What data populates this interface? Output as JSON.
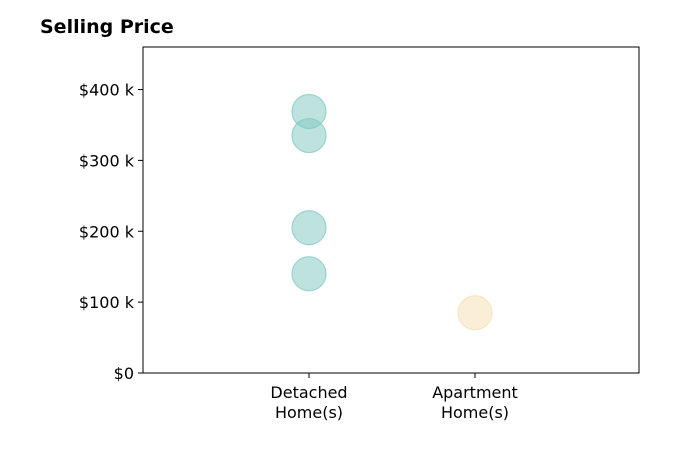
{
  "chart_data": {
    "type": "scatter",
    "title": "Selling Price",
    "xlabel": "",
    "ylabel": "",
    "categories": [
      [
        "Detached",
        "Home(s)"
      ],
      [
        "Apartment",
        "Home(s)"
      ]
    ],
    "ylim": [
      0,
      460000
    ],
    "yticks": [
      {
        "value": 0,
        "label": "$0"
      },
      {
        "value": 100000,
        "label": "$100 k"
      },
      {
        "value": 200000,
        "label": "$200 k"
      },
      {
        "value": 300000,
        "label": "$300 k"
      },
      {
        "value": 400000,
        "label": "$400 k"
      }
    ],
    "grid": false,
    "series": [
      {
        "category_index": 0,
        "color": "#7ec8c0",
        "values": [
          369000,
          335000,
          205000,
          140000
        ]
      },
      {
        "category_index": 1,
        "color": "#f5deb0",
        "values": [
          85000
        ]
      }
    ]
  }
}
